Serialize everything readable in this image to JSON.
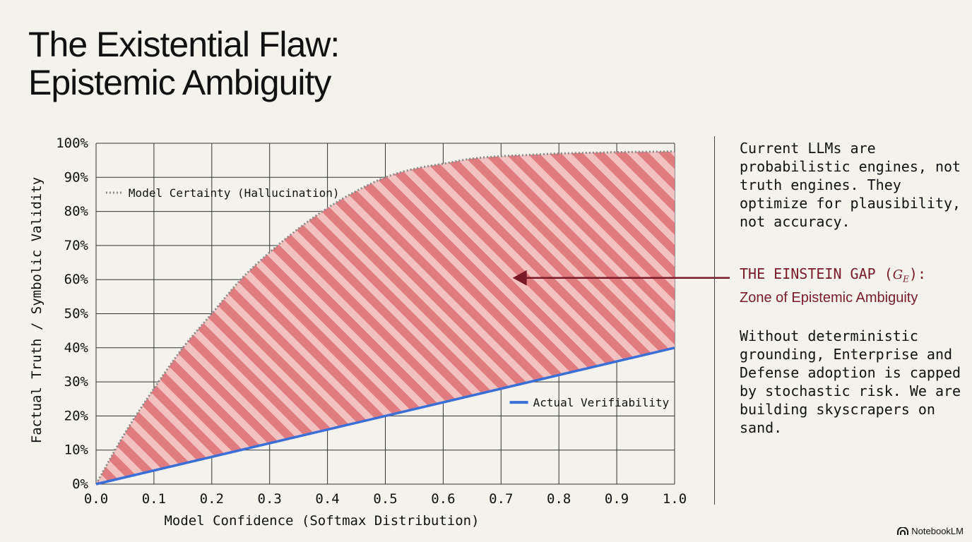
{
  "slide": {
    "title_line1": "The Existential Flaw:",
    "title_line2": "Epistemic Ambiguity",
    "paragraph1": "Current LLMs are probabilistic engines, not truth engines. They optimize for plausibility, not accuracy.",
    "gap_label_prefix": "THE EINSTEIN GAP (",
    "gap_symbol": "G",
    "gap_subscript": "E",
    "gap_label_suffix": "):",
    "gap_subtitle": "Zone of Epistemic Ambiguity",
    "paragraph2": "Without deterministic grounding, Enterprise and Defense adoption is capped by stochastic risk. We are building skyscrapers on sand.",
    "brand": "NotebookLM"
  },
  "colors": {
    "fill_stripe_dark": "#e07c7f",
    "fill_stripe_light": "#f2c2c1",
    "certainty_line": "#8a8a8a",
    "actual_line": "#3a6fd8",
    "arrow": "#7a1a28",
    "grid": "#333333"
  },
  "chart_data": {
    "type": "area",
    "xlabel": "Model Confidence (Softmax Distribution)",
    "ylabel": "Factual Truth / Symbolic Validity",
    "xlim": [
      0,
      1
    ],
    "ylim": [
      0,
      100
    ],
    "x_ticks": [
      "0.0",
      "0.1",
      "0.2",
      "0.3",
      "0.4",
      "0.5",
      "0.6",
      "0.7",
      "0.8",
      "0.9",
      "1.0"
    ],
    "y_ticks": [
      "0%",
      "10%",
      "20%",
      "30%",
      "40%",
      "50%",
      "60%",
      "70%",
      "80%",
      "90%",
      "100%"
    ],
    "grid": true,
    "legend": "inline",
    "series": [
      {
        "name": "Model Certainty (Hallucination)",
        "style": "dotted",
        "x": [
          0.0,
          0.05,
          0.1,
          0.15,
          0.2,
          0.25,
          0.3,
          0.35,
          0.4,
          0.45,
          0.5,
          0.55,
          0.6,
          0.65,
          0.7,
          0.75,
          0.8,
          0.85,
          0.9,
          0.95,
          1.0
        ],
        "y": [
          0,
          15,
          28,
          40,
          50,
          60,
          68,
          75,
          81,
          86,
          90,
          92.5,
          94,
          95.5,
          96.2,
          96.6,
          97,
          97.2,
          97.4,
          97.5,
          97.6
        ]
      },
      {
        "name": "Actual Verifiability",
        "style": "solid",
        "x": [
          0.0,
          1.0
        ],
        "y": [
          0,
          40
        ]
      }
    ],
    "shaded_region": "between series"
  }
}
